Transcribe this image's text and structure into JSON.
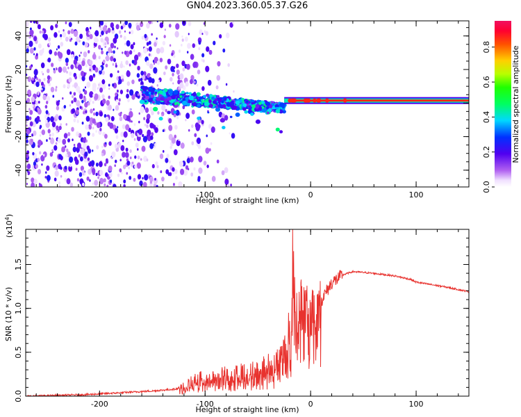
{
  "title": "GN04.2023.360.05.37.G26",
  "colors": {
    "trace": "#e8322e",
    "axis": "#000000",
    "background": "#ffffff"
  },
  "chart_data": [
    {
      "type": "heatmap",
      "name": "spectrogram",
      "xlabel": "Height of straight line (km)",
      "ylabel": "Frequency (Hz)",
      "xlim": [
        -270,
        150
      ],
      "ylim": [
        -50,
        49
      ],
      "xticks": [
        "-200",
        "-100",
        "0",
        "100"
      ],
      "xtick_values": [
        -200,
        -100,
        0,
        100
      ],
      "yticks": [
        "-40",
        "-20",
        "0",
        "20",
        "40"
      ],
      "ytick_values": [
        -40,
        -20,
        0,
        20,
        40
      ],
      "colorbar": {
        "label": "Normalized spectral amplitude",
        "range": [
          0.0,
          0.95
        ],
        "ticks": [
          "0.0",
          "0.2",
          "0.4",
          "0.6",
          "0.8"
        ],
        "tick_values": [
          0.0,
          0.2,
          0.4,
          0.6,
          0.8
        ]
      },
      "features": [
        {
          "name": "broadband noise",
          "x_range": [
            -270,
            -125
          ],
          "freq_range": [
            -50,
            49
          ],
          "amplitude": 0.15
        },
        {
          "name": "dispersed signal",
          "x_range": [
            -160,
            -25
          ],
          "freq_center_start": 5,
          "freq_center_end": -3,
          "amplitude": 0.35
        },
        {
          "name": "tone line",
          "x_range": [
            -25,
            150
          ],
          "freq": 1.5,
          "amplitude": 0.9
        }
      ]
    },
    {
      "type": "line",
      "name": "snr",
      "xlabel": "Height of straight line (km)",
      "ylabel": "SNR (10 * v/v)",
      "y_multiplier": "(x10",
      "y_multiplier_exp": "4",
      "y_multiplier_close": ")",
      "xlim": [
        -270,
        150
      ],
      "ylim": [
        0,
        1.9
      ],
      "xticks": [
        "-200",
        "-100",
        "0",
        "100"
      ],
      "xtick_values": [
        -200,
        -100,
        0,
        100
      ],
      "yticks": [
        "0.0",
        "0.5",
        "1.0",
        "1.5"
      ],
      "ytick_values": [
        0.0,
        0.5,
        1.0,
        1.5
      ],
      "series": [
        {
          "name": "SNR",
          "x": [
            -270,
            -240,
            -210,
            -180,
            -150,
            -130,
            -120,
            -110,
            -100,
            -90,
            -80,
            -70,
            -60,
            -50,
            -40,
            -35,
            -30,
            -25,
            -22,
            -20,
            -18,
            -17,
            -15,
            -12,
            -10,
            -5,
            0,
            10,
            20,
            30,
            40,
            50,
            60,
            80,
            95,
            100,
            110,
            130,
            150
          ],
          "y": [
            0.0,
            0.01,
            0.02,
            0.04,
            0.06,
            0.08,
            0.1,
            0.18,
            0.22,
            0.22,
            0.24,
            0.27,
            0.25,
            0.3,
            0.35,
            0.32,
            0.45,
            0.48,
            0.55,
            0.8,
            1.0,
            1.88,
            1.15,
            0.9,
            1.1,
            1.0,
            0.95,
            1.1,
            1.3,
            1.38,
            1.42,
            1.41,
            1.4,
            1.37,
            1.33,
            1.3,
            1.28,
            1.24,
            1.19
          ]
        }
      ]
    }
  ]
}
